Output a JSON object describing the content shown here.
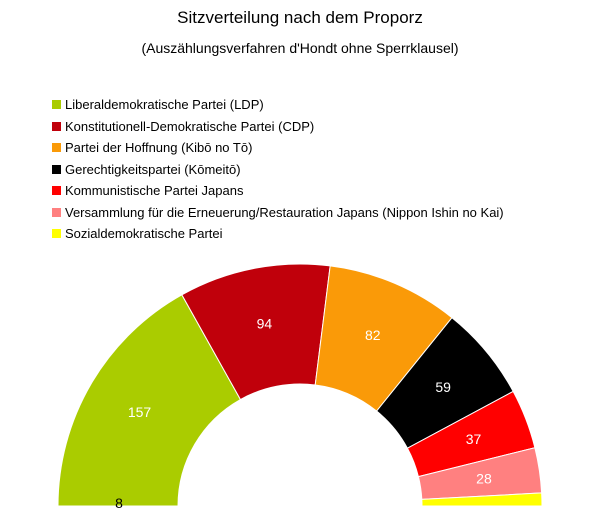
{
  "title": "Sitzverteilung nach dem Proporz",
  "subtitle": "(Auszählungsverfahren d'Hondt ohne Sperrklausel)",
  "chart_data": {
    "type": "pie",
    "variant": "half-donut",
    "legend_position": "top-left",
    "series": [
      {
        "name": "Liberaldemokratische Partei (LDP)",
        "value": 157,
        "label": "157",
        "color": "#aacc00",
        "label_color": "#ffffff"
      },
      {
        "name": "Konstitutionell-Demokratische Partei (CDP)",
        "value": 94,
        "label": "94",
        "color": "#c0000b",
        "label_color": "#ffffff"
      },
      {
        "name": "Partei der Hoffnung (Kibō no Tō)",
        "value": 82,
        "label": "82",
        "color": "#fa9a08",
        "label_color": "#ffffff"
      },
      {
        "name": "Gerechtigkeitspartei (Kōmeitō)",
        "value": 59,
        "label": "59",
        "color": "#000000",
        "label_color": "#ffffff"
      },
      {
        "name": "Kommunistische Partei Japans",
        "value": 37,
        "label": "37",
        "color": "#ff0000",
        "label_color": "#ffffff"
      },
      {
        "name": "Versammlung für die Erneuerung/Restauration Japans (Nippon Ishin no Kai)",
        "value": 28,
        "label": "28",
        "color": "#ff8080",
        "label_color": "#ffffff"
      },
      {
        "name": "Sozialdemokratische Partei",
        "value": 8,
        "label": "8",
        "color": "#ffff00",
        "label_color": "#000000"
      }
    ]
  }
}
